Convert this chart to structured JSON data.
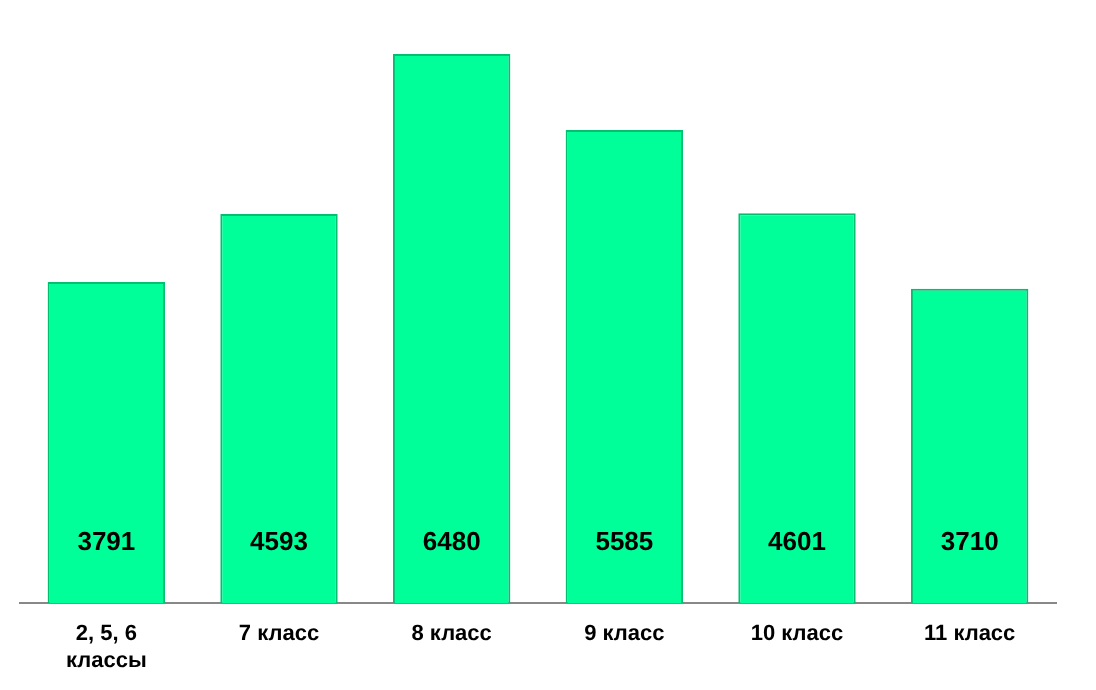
{
  "chart_data": {
    "type": "bar",
    "categories": [
      "2, 5, 6 классы",
      "7 класс",
      "8 класс",
      "9 класс",
      "10 класс",
      "11 класс"
    ],
    "values": [
      3791,
      4593,
      6480,
      5585,
      4601,
      3710
    ],
    "color": "#00ff99",
    "data_labels": true,
    "grid": false,
    "legend": false,
    "tick_labels": "x"
  }
}
